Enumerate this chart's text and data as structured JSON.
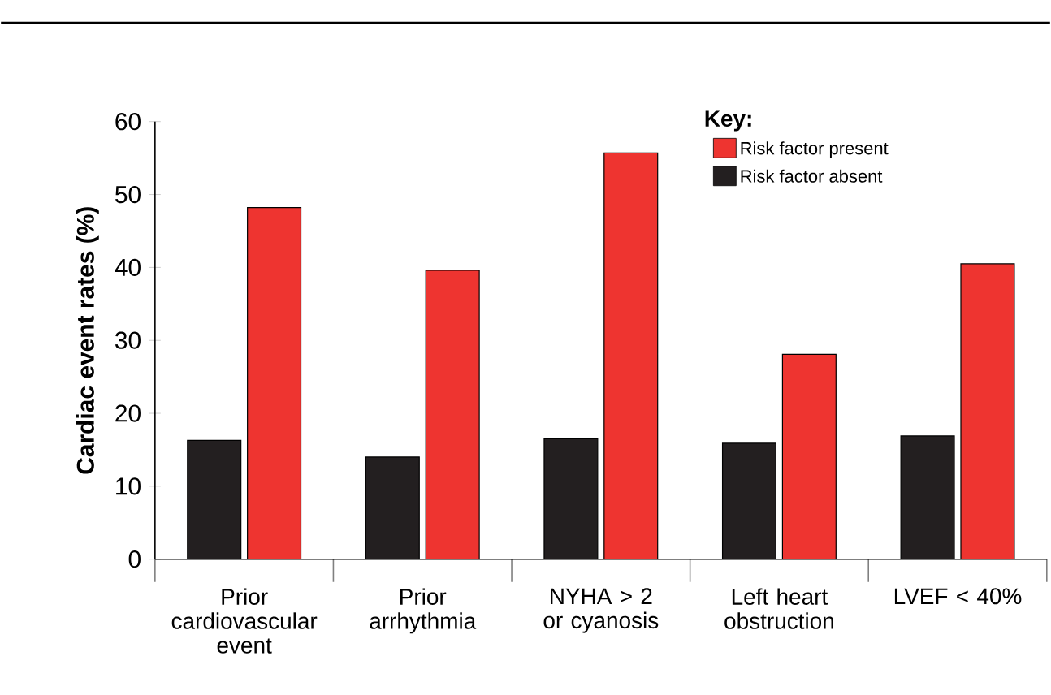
{
  "chart_data": {
    "type": "bar",
    "ylabel": "Cardiac event rates (%)",
    "legend_title": "Key:",
    "categories": [
      "Prior cardiovascular event",
      "Prior arrhythmia",
      "NYHA > 2 or cyanosis",
      "Left heart obstruction",
      "LVEF < 40%"
    ],
    "series": [
      {
        "name": "Risk factor absent",
        "color": "#231f20",
        "values": [
          16.3,
          14.0,
          16.5,
          15.9,
          16.9
        ]
      },
      {
        "name": "Risk factor present",
        "color": "#ee3430",
        "values": [
          48.2,
          39.6,
          55.7,
          28.1,
          40.5
        ]
      }
    ],
    "ylim": [
      0,
      60
    ],
    "yticks": [
      0,
      10,
      20,
      30,
      40,
      50,
      60
    ],
    "legend": "top right",
    "grid": false
  }
}
